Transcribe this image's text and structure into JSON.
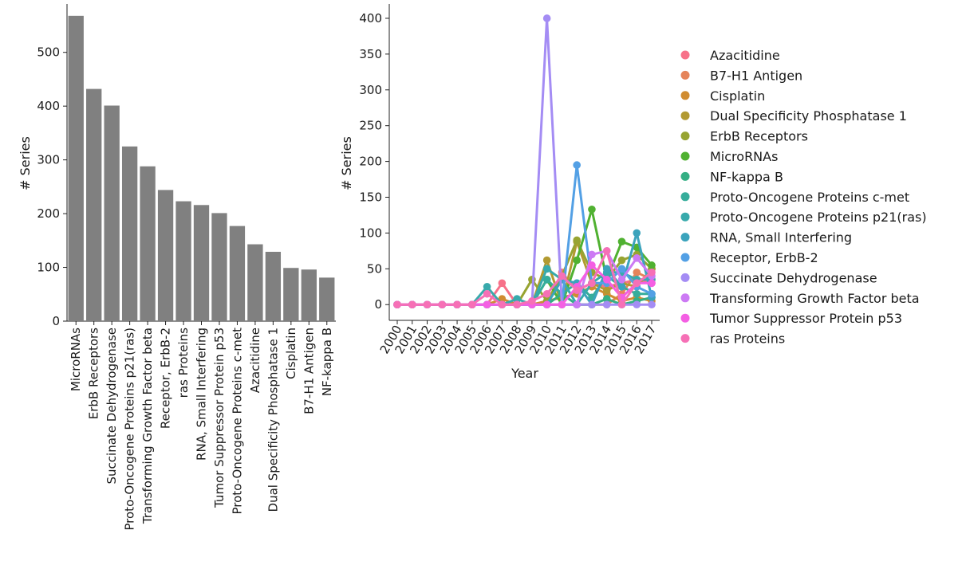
{
  "chart_data": [
    {
      "type": "bar",
      "ylabel": "# Series",
      "xlabel": "",
      "ylim": [
        0,
        590
      ],
      "yticks": [
        0,
        100,
        200,
        300,
        400,
        500
      ],
      "bar_color": "#808080",
      "categories": [
        "MicroRNAs",
        "ErbB Receptors",
        "Succinate Dehydrogenase",
        "Proto-Oncogene Proteins p21(ras)",
        "Transforming Growth Factor beta",
        "Receptor, ErbB-2",
        "ras Proteins",
        "RNA, Small Interfering",
        "Tumor Suppressor Protein p53",
        "Proto-Oncogene Proteins c-met",
        "Azacitidine",
        "Dual Specificity Phosphatase 1",
        "Cisplatin",
        "B7-H1 Antigen",
        "NF-kappa B"
      ],
      "values": [
        568,
        432,
        401,
        325,
        288,
        244,
        223,
        216,
        201,
        177,
        143,
        129,
        99,
        96,
        81
      ]
    },
    {
      "type": "line",
      "xlabel": "Year",
      "ylabel": "# Series",
      "ylim": [
        -22,
        420
      ],
      "yticks": [
        0,
        50,
        100,
        150,
        200,
        250,
        300,
        350,
        400
      ],
      "x": [
        "2000",
        "2001",
        "2002",
        "2003",
        "2004",
        "2005",
        "2006",
        "2007",
        "2008",
        "2009",
        "2010",
        "2011",
        "2012",
        "2013",
        "2014",
        "2015",
        "2016",
        "2017"
      ],
      "series": [
        {
          "name": "Azacitidine",
          "color": "#f77189",
          "values": [
            0,
            0,
            0,
            0,
            0,
            0,
            0,
            30,
            0,
            0,
            0,
            45,
            20,
            30,
            25,
            30,
            35,
            30
          ]
        },
        {
          "name": "B7-H1 Antigen",
          "color": "#e5845a",
          "values": [
            0,
            0,
            0,
            0,
            0,
            0,
            0,
            0,
            0,
            0,
            0,
            0,
            0,
            0,
            0,
            15,
            45,
            35
          ]
        },
        {
          "name": "Cisplatin",
          "color": "#d08c31",
          "values": [
            0,
            0,
            0,
            0,
            0,
            0,
            0,
            8,
            0,
            0,
            5,
            10,
            15,
            25,
            15,
            5,
            10,
            5
          ]
        },
        {
          "name": "Dual Specificity Phosphatase 1",
          "color": "#b29a31",
          "values": [
            0,
            0,
            0,
            0,
            0,
            0,
            0,
            0,
            0,
            0,
            62,
            0,
            88,
            30,
            20,
            30,
            25,
            50
          ]
        },
        {
          "name": "ErbB Receptors",
          "color": "#97a431",
          "values": [
            0,
            0,
            0,
            0,
            0,
            0,
            0,
            0,
            0,
            35,
            5,
            40,
            90,
            45,
            35,
            62,
            70,
            50
          ]
        },
        {
          "name": "MicroRNAs",
          "color": "#50b131",
          "values": [
            0,
            0,
            0,
            0,
            0,
            0,
            0,
            0,
            0,
            0,
            35,
            0,
            62,
            133,
            35,
            88,
            80,
            55
          ]
        },
        {
          "name": "NF-kappa B",
          "color": "#34af84",
          "values": [
            0,
            0,
            0,
            0,
            0,
            0,
            0,
            0,
            0,
            0,
            0,
            15,
            0,
            0,
            8,
            0,
            5,
            10
          ]
        },
        {
          "name": "Proto-Oncogene Proteins c-met",
          "color": "#36ad9b",
          "values": [
            0,
            0,
            0,
            0,
            0,
            0,
            0,
            0,
            0,
            0,
            35,
            15,
            30,
            10,
            40,
            25,
            15,
            15
          ]
        },
        {
          "name": "Proto-Oncogene Proteins p21(ras)",
          "color": "#38aaac",
          "values": [
            0,
            0,
            0,
            0,
            0,
            0,
            25,
            0,
            8,
            0,
            50,
            35,
            0,
            30,
            45,
            45,
            35,
            35
          ]
        },
        {
          "name": "RNA, Small Interfering",
          "color": "#3ba3bc",
          "values": [
            0,
            0,
            0,
            0,
            0,
            0,
            0,
            0,
            0,
            0,
            0,
            35,
            30,
            0,
            50,
            25,
            100,
            10
          ]
        },
        {
          "name": "Receptor, ErbB-2",
          "color": "#53a0e5",
          "values": [
            0,
            0,
            0,
            0,
            0,
            0,
            0,
            0,
            0,
            0,
            0,
            0,
            195,
            30,
            30,
            50,
            25,
            15
          ]
        },
        {
          "name": "Succinate Dehydrogenase",
          "color": "#a48cf4",
          "values": [
            0,
            0,
            0,
            0,
            0,
            0,
            0,
            0,
            0,
            0,
            400,
            0,
            0,
            0,
            0,
            0,
            0,
            0
          ]
        },
        {
          "name": "Transforming Growth Factor beta",
          "color": "#cc7af4",
          "values": [
            0,
            0,
            0,
            0,
            0,
            0,
            0,
            0,
            0,
            0,
            0,
            0,
            0,
            70,
            75,
            35,
            65,
            40
          ]
        },
        {
          "name": "Tumor Suppressor Protein p53",
          "color": "#f45fe3",
          "values": [
            0,
            0,
            0,
            0,
            0,
            0,
            0,
            0,
            0,
            0,
            0,
            0,
            25,
            55,
            35,
            10,
            30,
            30
          ]
        },
        {
          "name": "ras Proteins",
          "color": "#f670b6",
          "values": [
            0,
            0,
            0,
            0,
            0,
            0,
            15,
            0,
            0,
            5,
            15,
            40,
            20,
            30,
            75,
            0,
            30,
            45
          ]
        }
      ]
    }
  ]
}
